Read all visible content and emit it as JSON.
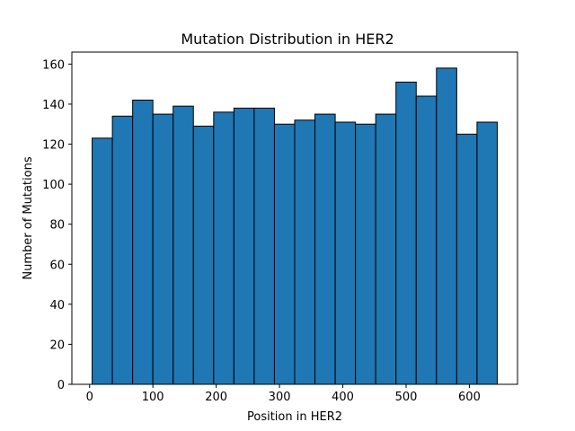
{
  "chart_data": {
    "type": "bar",
    "title": "Mutation Distribution in HER2",
    "xlabel": "Position in HER2",
    "ylabel": "Number of Mutations",
    "xlim": [
      -28,
      676
    ],
    "ylim": [
      0,
      166
    ],
    "xticks": [
      0,
      100,
      200,
      300,
      400,
      500,
      600
    ],
    "yticks": [
      0,
      20,
      40,
      60,
      80,
      100,
      120,
      140,
      160
    ],
    "bin_width": 32,
    "bin_start": 4,
    "values": [
      123,
      134,
      142,
      135,
      139,
      129,
      136,
      138,
      138,
      130,
      132,
      135,
      131,
      130,
      135,
      151,
      144,
      158,
      125,
      131
    ],
    "bar_color": "#1f77b4",
    "edge_color": "#000000",
    "grid": false,
    "legend": "none"
  }
}
